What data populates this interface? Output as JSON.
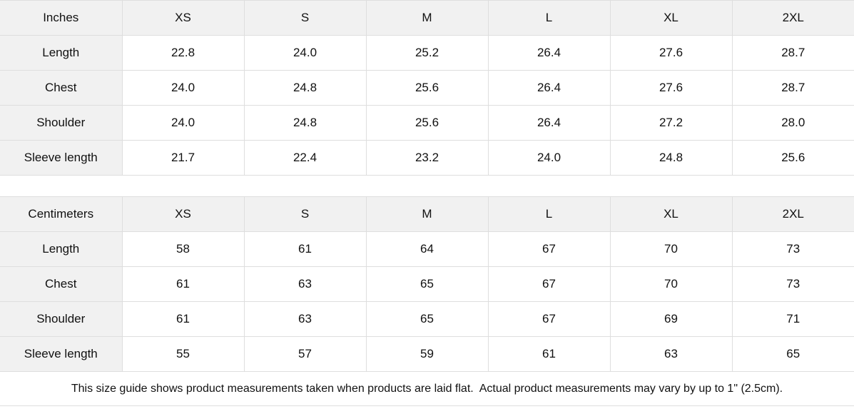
{
  "tables": [
    {
      "header": [
        "Inches",
        "XS",
        "S",
        "M",
        "L",
        "XL",
        "2XL"
      ],
      "rows": [
        {
          "label": "Length",
          "values": [
            "22.8",
            "24.0",
            "25.2",
            "26.4",
            "27.6",
            "28.7"
          ]
        },
        {
          "label": "Chest",
          "values": [
            "24.0",
            "24.8",
            "25.6",
            "26.4",
            "27.6",
            "28.7"
          ]
        },
        {
          "label": "Shoulder",
          "values": [
            "24.0",
            "24.8",
            "25.6",
            "26.4",
            "27.2",
            "28.0"
          ]
        },
        {
          "label": "Sleeve length",
          "values": [
            "21.7",
            "22.4",
            "23.2",
            "24.0",
            "24.8",
            "25.6"
          ]
        }
      ]
    },
    {
      "header": [
        "Centimeters",
        "XS",
        "S",
        "M",
        "L",
        "XL",
        "2XL"
      ],
      "rows": [
        {
          "label": "Length",
          "values": [
            "58",
            "61",
            "64",
            "67",
            "70",
            "73"
          ]
        },
        {
          "label": "Chest",
          "values": [
            "61",
            "63",
            "65",
            "67",
            "70",
            "73"
          ]
        },
        {
          "label": "Shoulder",
          "values": [
            "61",
            "63",
            "65",
            "67",
            "69",
            "71"
          ]
        },
        {
          "label": "Sleeve length",
          "values": [
            "55",
            "57",
            "59",
            "61",
            "63",
            "65"
          ]
        }
      ]
    }
  ],
  "footer": {
    "note": "This size guide shows product measurements taken when products are laid flat.  Actual product measurements may vary by up to 1\" (2.5cm)."
  },
  "colors": {
    "page_bg": "#ffffff",
    "header_bg": "#f1f1f1",
    "border": "#dedede",
    "text": "#111111"
  }
}
